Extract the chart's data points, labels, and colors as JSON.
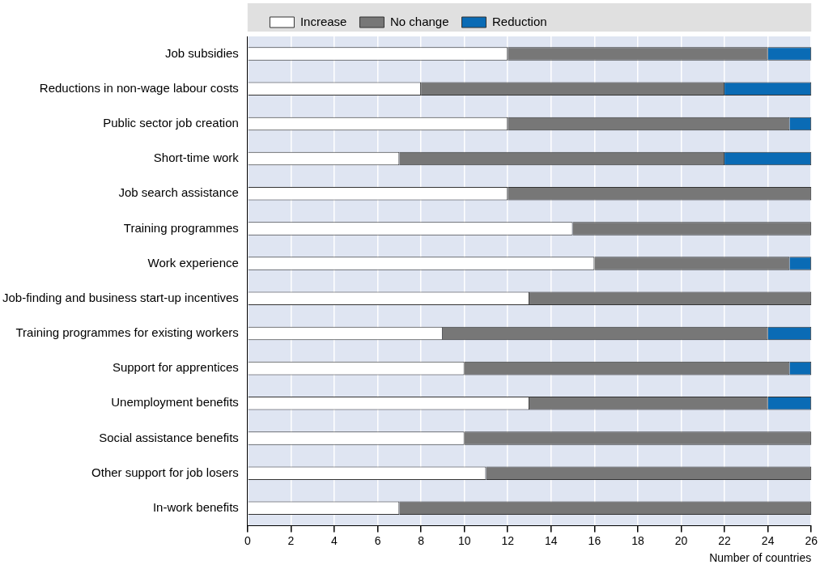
{
  "chart_data": {
    "type": "bar",
    "orientation": "horizontal",
    "stacked": true,
    "xlabel": "Number of countries",
    "categories": [
      "Job subsidies",
      "Reductions in non-wage labour costs",
      "Public sector job creation",
      "Short-time work",
      "Job search assistance",
      "Training programmes",
      "Work experience",
      "Job-finding and business start-up incentives",
      "Training programmes for existing workers",
      "Support for apprentices",
      "Unemployment benefits",
      "Social assistance benefits",
      "Other support for job losers",
      "In-work benefits"
    ],
    "series": [
      {
        "name": "Increase",
        "color": "#ffffff",
        "values": [
          12,
          8,
          12,
          7,
          12,
          15,
          16,
          13,
          9,
          10,
          13,
          10,
          11,
          7
        ]
      },
      {
        "name": "No change",
        "color": "#777777",
        "values": [
          12,
          14,
          13,
          15,
          14,
          11,
          9,
          13,
          15,
          15,
          11,
          16,
          15,
          19
        ]
      },
      {
        "name": "Reduction",
        "color": "#0a6bb5",
        "values": [
          2,
          4,
          1,
          4,
          0,
          0,
          1,
          0,
          2,
          1,
          2,
          0,
          0,
          0
        ]
      }
    ],
    "xlim": [
      0,
      26
    ],
    "xticks": [
      0,
      2,
      4,
      6,
      8,
      10,
      12,
      14,
      16,
      18,
      20,
      22,
      24,
      26
    ],
    "grid": "x",
    "legend": "top"
  }
}
